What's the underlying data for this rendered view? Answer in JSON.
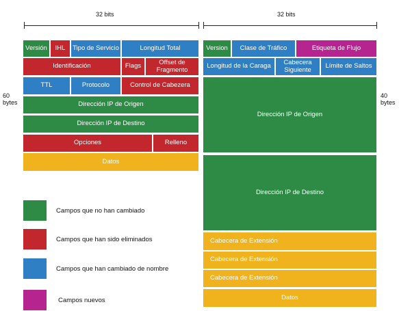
{
  "header": {
    "ipv4_width": "32 bits",
    "ipv6_width": "32 bits",
    "ipv4_size": "60\nbytes",
    "ipv6_size": "40\nbytes"
  },
  "ipv4": {
    "version": "Versión",
    "ihl": "IHL",
    "tos": "Tipo de Servicio",
    "total_length": "Longitud Total",
    "identification": "Identificación",
    "flags": "Flags",
    "fragment_offset": "Offset de Fragmento",
    "ttl": "TTL",
    "protocol": "Protocolo",
    "header_checksum": "Control de Cabezera",
    "source": "Dirección IP de Origen",
    "destination": "Dirección IP de Destino",
    "options": "Opciones",
    "padding": "Relleno",
    "data": "Datos"
  },
  "ipv6": {
    "version": "Version",
    "traffic_class": "Clase de Tráfico",
    "flow_label": "Etiqueta de Flujo",
    "payload_length": "Longitud de la Caraga",
    "next_header": "Cabecera Siguiente",
    "hop_limit": "Límite de Saltos",
    "source": "Dirección IP de Origen",
    "destination": "Dirección IP de Destino",
    "ext1": "Cabecera de Extensión",
    "ext2": "Cabecera de Extensión",
    "ext3": "Cabecera de Extensión",
    "data": "Datos"
  },
  "legend": {
    "unchanged": "Campos que no han cambiado",
    "removed": "Campos que han sido eliminados",
    "renamed": "Campos que han cambiado de nombre",
    "new": "Campos nuevos"
  },
  "colors": {
    "unchanged": "#2e8b45",
    "removed": "#c1272d",
    "renamed": "#2f7fc5",
    "new": "#b5248f",
    "data": "#f0b21d"
  }
}
